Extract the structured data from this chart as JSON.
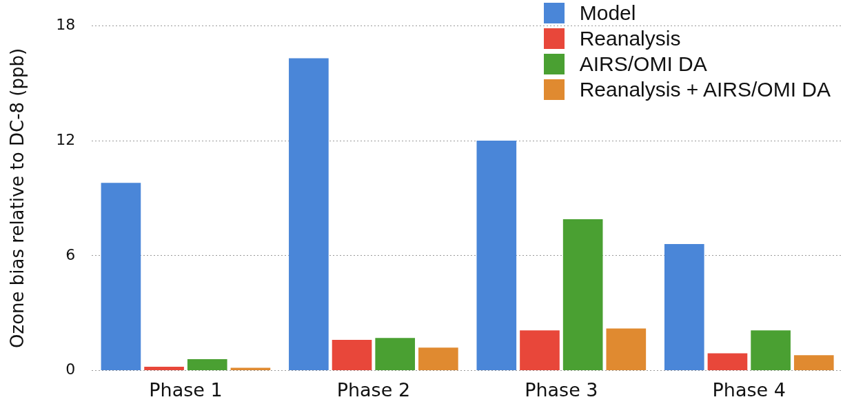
{
  "chart_data": {
    "type": "bar",
    "ylabel": "Ozone bias relative to DC-8 (ppb)",
    "categories": [
      "Phase 1",
      "Phase 2",
      "Phase 3",
      "Phase 4"
    ],
    "series": [
      {
        "name": "Model",
        "color": "#4a86d8",
        "values": [
          9.8,
          16.3,
          12.0,
          6.6
        ]
      },
      {
        "name": "Reanalysis",
        "color": "#e8473a",
        "values": [
          0.2,
          1.6,
          2.1,
          0.9
        ]
      },
      {
        "name": "AIRS/OMI DA",
        "color": "#4aa032",
        "values": [
          0.6,
          1.7,
          7.9,
          2.1
        ]
      },
      {
        "name": "Reanalysis + AIRS/OMI DA",
        "color": "#e08a30",
        "values": [
          0.15,
          1.2,
          2.2,
          0.8
        ]
      }
    ],
    "ylim": [
      0,
      18
    ],
    "yticks": [
      0,
      6,
      12,
      18
    ],
    "grid": "y",
    "legend": "top right"
  }
}
